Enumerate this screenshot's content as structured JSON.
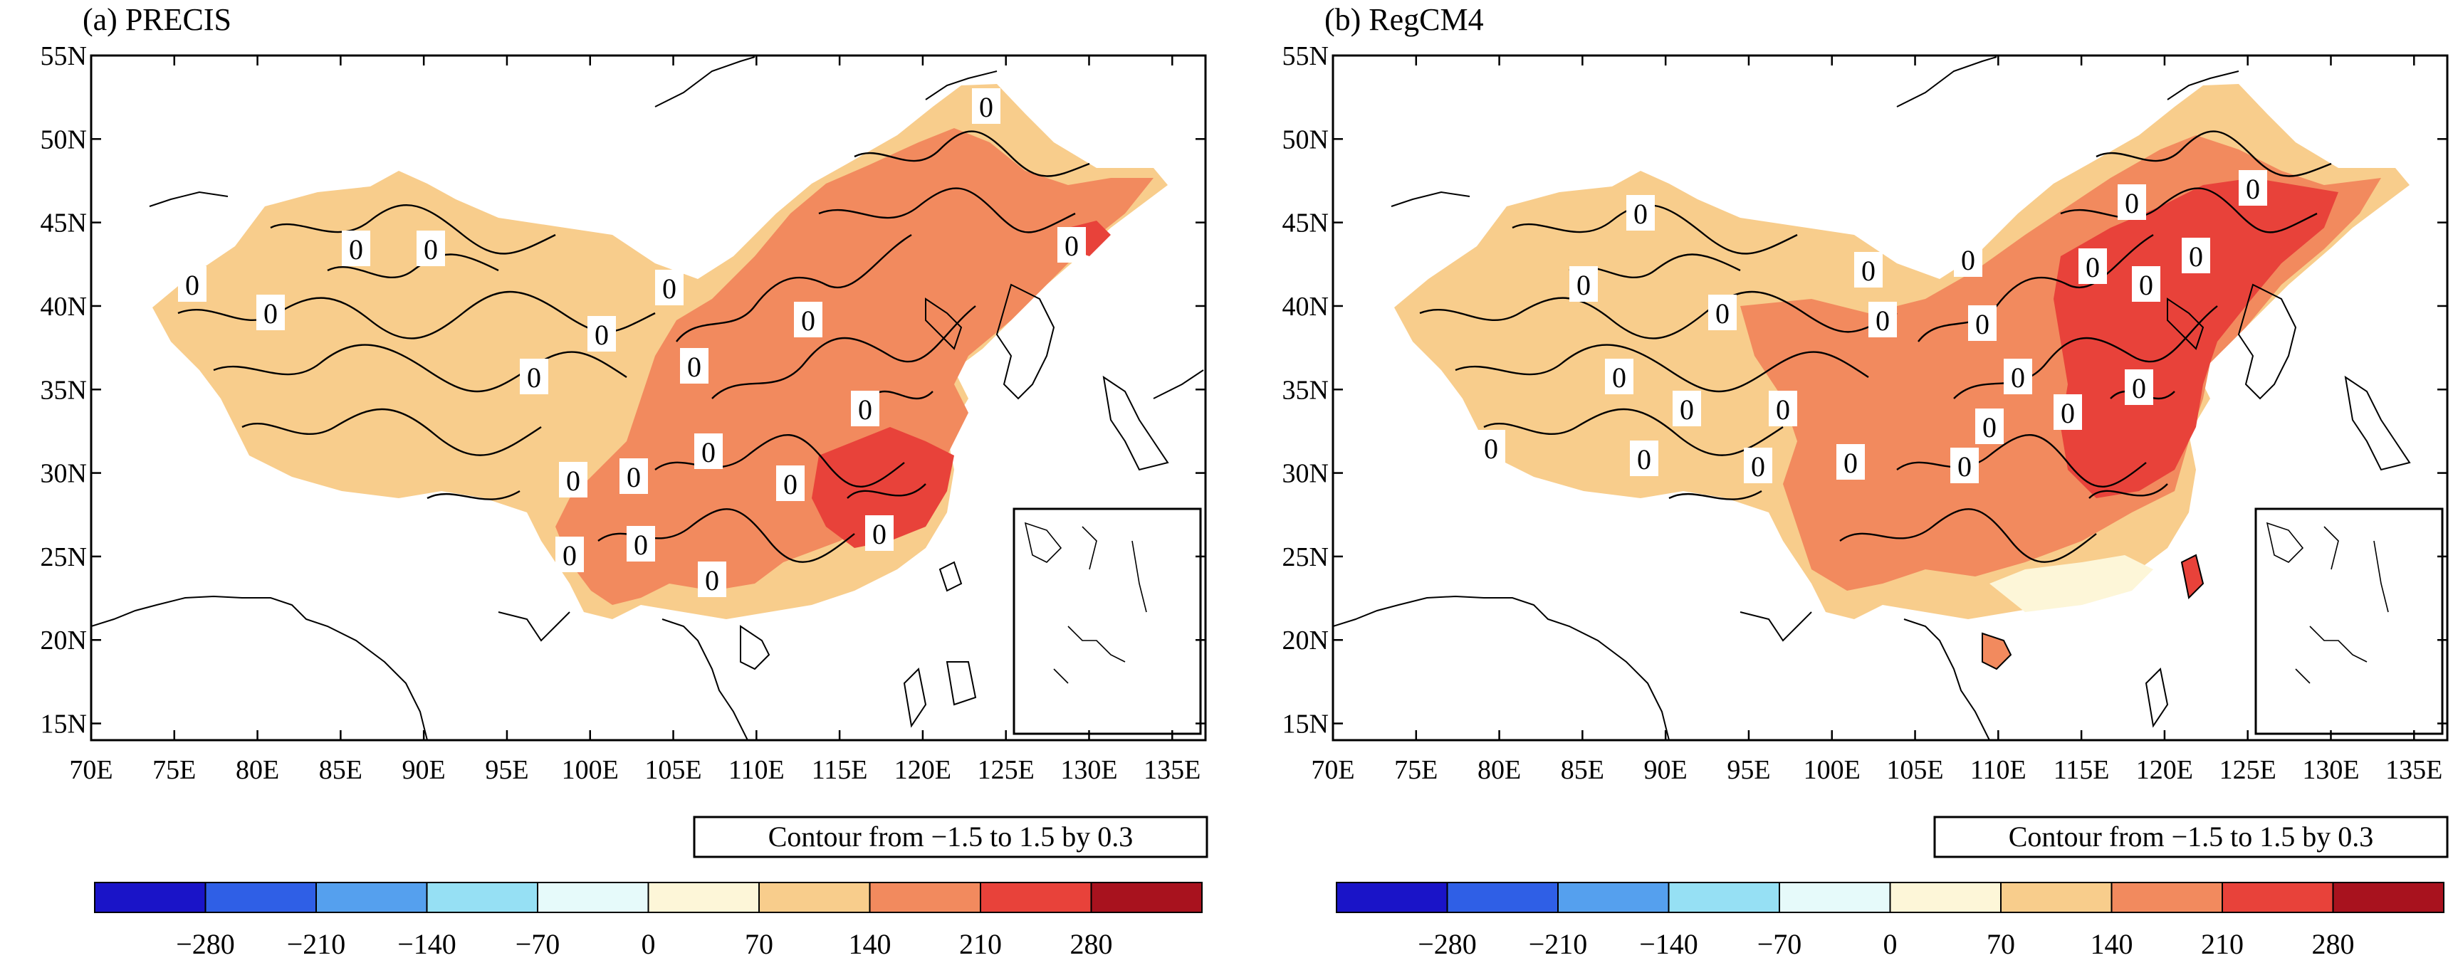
{
  "panels": [
    {
      "id": "a",
      "title": "(a) PRECIS",
      "contour_note": "Contour from −1.5 to 1.5 by 0.3",
      "contour_labels": [
        "0",
        "0",
        "0",
        "0",
        "0",
        "0",
        "0",
        "0",
        "0",
        "0",
        "0",
        "0",
        "0",
        "0",
        "0",
        "0",
        "0",
        "0",
        "0",
        "0"
      ]
    },
    {
      "id": "b",
      "title": "(b) RegCM4",
      "contour_note": "Contour from −1.5 to 1.5 by 0.3",
      "contour_labels": [
        "0",
        "0",
        "0",
        "0",
        "0",
        "0",
        "0",
        "0",
        "0",
        "0",
        "0",
        "0",
        "0",
        "0",
        "0",
        "0",
        "0",
        "0",
        "0",
        "0",
        "0",
        "0",
        "0",
        "0"
      ]
    }
  ],
  "map": {
    "lat_labels": [
      "15N",
      "20N",
      "25N",
      "30N",
      "35N",
      "40N",
      "45N",
      "50N",
      "55N"
    ],
    "lon_labels": [
      "70E",
      "75E",
      "80E",
      "85E",
      "90E",
      "95E",
      "100E",
      "105E",
      "110E",
      "115E",
      "120E",
      "125E",
      "130E",
      "135E"
    ],
    "lat_range": [
      14,
      55
    ],
    "lon_range": [
      70,
      137
    ]
  },
  "colorbar": {
    "labels": [
      "−280",
      "−210",
      "−140",
      "−70",
      "0",
      "70",
      "140",
      "210",
      "280"
    ],
    "colors": [
      "#1a14c8",
      "#2f5fe6",
      "#55a0ee",
      "#96e0f4",
      "#e6fafa",
      "#fdf6d8",
      "#f8cd8c",
      "#f28a5e",
      "#e8423a",
      "#a8121e"
    ]
  },
  "field_colors": {
    "light": "#f8cd8c",
    "medium": "#f28a5e",
    "strong": "#e8423a",
    "pale": "#fdf6d8"
  }
}
